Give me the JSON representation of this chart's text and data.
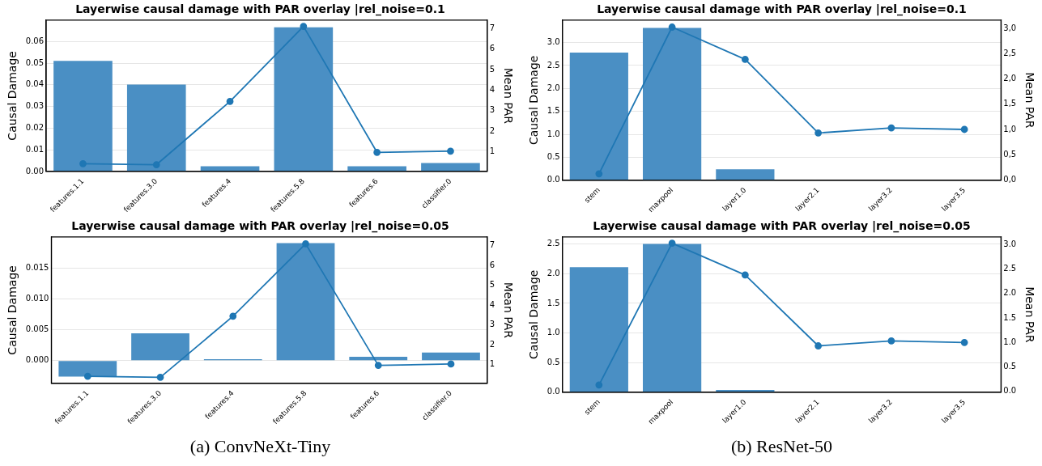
{
  "chart_data": [
    {
      "type": "bar",
      "title": "Layerwise causal damage with PAR overlay |rel_noise=0.1",
      "ylabel": "Causal Damage",
      "y2label": "Mean PAR",
      "categories": [
        "features.1.1",
        "features.3.0",
        "features.4",
        "features.5.8",
        "features.6",
        "classifier.0"
      ],
      "series": [
        {
          "color": "#4a8fc4",
          "values": [
            0.0511,
            0.0401,
            0.0024,
            0.0666,
            0.0024,
            0.0039
          ]
        },
        {
          "type": "line",
          "axis": "y2",
          "color": "#1f77b4",
          "values": [
            0.42,
            0.37,
            3.45,
            7.1,
            0.97,
            1.03
          ]
        }
      ],
      "ylim": [
        0,
        0.0699
      ],
      "yticks": [
        {
          "value": 0,
          "label": "0.00"
        },
        {
          "value": 0.01,
          "label": "0.01"
        },
        {
          "value": 0.02,
          "label": "0.02"
        },
        {
          "value": 0.03,
          "label": "0.03"
        },
        {
          "value": 0.04,
          "label": "0.04"
        },
        {
          "value": 0.05,
          "label": "0.05"
        },
        {
          "value": 0.06,
          "label": "0.06"
        }
      ],
      "y2lim": [
        0.04,
        7.41
      ],
      "y2ticks": [
        1,
        2,
        3,
        4,
        5,
        6,
        7
      ],
      "grid": "y",
      "marker": "circle",
      "line_style": "solid"
    },
    {
      "type": "bar",
      "title": "Layerwise causal damage with PAR overlay |rel_noise=0.1",
      "ylabel": "Causal Damage",
      "y2label": "Mean PAR",
      "categories": [
        "stem",
        "maxpool",
        "layer1.0",
        "layer2.1",
        "layer3.2",
        "layer3.5"
      ],
      "series": [
        {
          "color": "#4a8fc4",
          "values": [
            2.78,
            3.32,
            0.24,
            0,
            0,
            0
          ]
        },
        {
          "type": "line",
          "axis": "y2",
          "color": "#1f77b4",
          "values": [
            0.12,
            3.03,
            2.39,
            0.93,
            1.03,
            1.0
          ]
        }
      ],
      "ylim": [
        0,
        3.49
      ],
      "yticks": [
        {
          "value": 0,
          "label": "0.0"
        },
        {
          "value": 0.5,
          "label": "0.5"
        },
        {
          "value": 1,
          "label": "1.0"
        },
        {
          "value": 1.5,
          "label": "1.5"
        },
        {
          "value": 2,
          "label": "2.0"
        },
        {
          "value": 2.5,
          "label": "2.5"
        },
        {
          "value": 3,
          "label": "3.0"
        }
      ],
      "y2lim": [
        -0.01,
        3.17
      ],
      "y2ticks": [
        {
          "value": 0,
          "label": "0,0"
        },
        {
          "value": 0.5,
          "label": "0,5"
        },
        {
          "value": 1,
          "label": "1,0"
        },
        {
          "value": 1.5,
          "label": "1,5"
        },
        {
          "value": 2,
          "label": "2,0"
        },
        {
          "value": 2.5,
          "label": "2,5"
        },
        {
          "value": 3,
          "label": "3,0"
        }
      ],
      "grid": "y",
      "marker": "circle",
      "line_style": "solid"
    },
    {
      "type": "bar",
      "title": "Layerwise causal damage with PAR overlay |rel_noise=0.05",
      "ylabel": "Causal Damage",
      "y2label": "Mean PAR",
      "categories": [
        "features.1.1",
        "features.3.0",
        "features.4",
        "features.5.8",
        "features.6",
        "classifier.0"
      ],
      "series": [
        {
          "color": "#4a8fc4",
          "values": [
            -0.0026,
            0.0044,
            0.0002,
            0.019,
            0.0006,
            0.0013
          ]
        },
        {
          "type": "line",
          "axis": "y2",
          "color": "#1f77b4",
          "values": [
            0.42,
            0.37,
            3.45,
            7.1,
            0.97,
            1.04
          ]
        }
      ],
      "ylim": [
        -0.0037,
        0.02
      ],
      "yticks": [
        {
          "value": 0,
          "label": "0.000"
        },
        {
          "value": 0.005,
          "label": "0.005"
        },
        {
          "value": 0.01,
          "label": "0.010"
        },
        {
          "value": 0.015,
          "label": "0.015"
        }
      ],
      "y2lim": [
        0.06,
        7.45
      ],
      "y2ticks": [
        1,
        2,
        3,
        4,
        5,
        6,
        7
      ],
      "grid": "y",
      "marker": "circle",
      "line_style": "solid",
      "annotations": [
        "(a) ConvNeXt-Tiny"
      ]
    },
    {
      "type": "bar",
      "title": "Layerwise causal damage with PAR overlay |rel_noise=0.05",
      "ylabel": "Causal Damage",
      "y2label": "Mean PAR",
      "categories": [
        "stem",
        "maxpool",
        "layer1.0",
        "layer2.1",
        "layer3.2",
        "layer3.5"
      ],
      "series": [
        {
          "color": "#4a8fc4",
          "values": [
            2.11,
            2.5,
            0.04,
            0,
            0,
            0
          ]
        },
        {
          "type": "line",
          "axis": "y2",
          "color": "#1f77b4",
          "values": [
            0.13,
            3.03,
            2.38,
            0.93,
            1.03,
            1.0
          ]
        }
      ],
      "ylim": [
        0,
        2.62
      ],
      "yticks": [
        {
          "value": 0,
          "label": "0.0"
        },
        {
          "value": 0.5,
          "label": "0.5"
        },
        {
          "value": 1,
          "label": "1.0"
        },
        {
          "value": 1.5,
          "label": "1.5"
        },
        {
          "value": 2,
          "label": "2.0"
        },
        {
          "value": 2.5,
          "label": "2.5"
        }
      ],
      "y2lim": [
        -0.02,
        3.16
      ],
      "y2ticks": [
        {
          "value": 0,
          "label": "0.0"
        },
        {
          "value": 0.5,
          "label": "0.5"
        },
        {
          "value": 1,
          "label": "1.0"
        },
        {
          "value": 1.5,
          "label": "1.5"
        },
        {
          "value": 2,
          "label": "2.0"
        },
        {
          "value": 2.5,
          "label": "2.5"
        },
        {
          "value": 3,
          "label": "3.0"
        }
      ],
      "grid": "y",
      "marker": "circle",
      "line_style": "solid",
      "annotations": [
        "(b) ResNet-50"
      ]
    }
  ]
}
